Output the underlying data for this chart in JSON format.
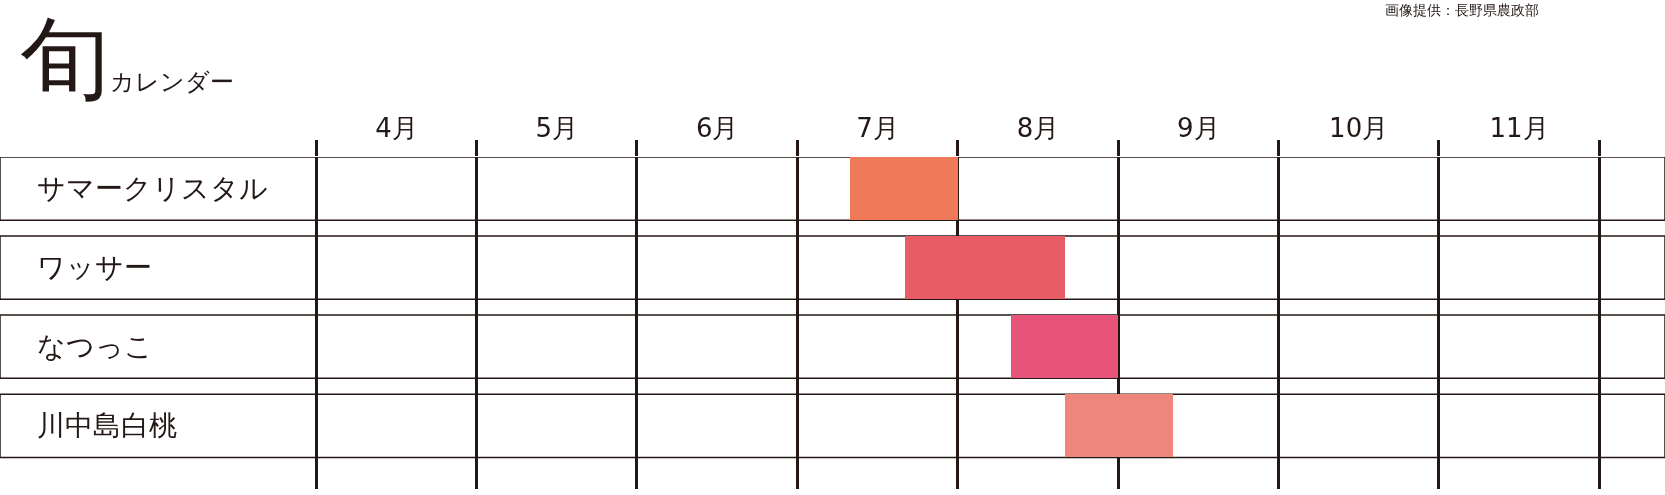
{
  "chart_data": {
    "type": "bar",
    "orientation": "horizontal",
    "title": "旬カレンダー",
    "annotations": [
      "画像提供：長野県農政部"
    ],
    "categories": [
      "サマークリスタル",
      "ワッサー",
      "なつっこ",
      "川中島白桃"
    ],
    "base": [
      7.33,
      7.67,
      8.33,
      8.67
    ],
    "values": [
      0.67,
      1.0,
      0.67,
      0.67
    ],
    "colors": [
      "#ef7a5a",
      "#e85d65",
      "#e8537a",
      "#ef867b"
    ],
    "xlim": [
      3.98,
      12.41
    ],
    "xticks": [
      {
        "value": 4,
        "label": null
      },
      {
        "value": 4.5,
        "label": "4月"
      },
      {
        "value": 5,
        "label": null
      },
      {
        "value": 5.5,
        "label": "5月"
      },
      {
        "value": 6,
        "label": null
      },
      {
        "value": 6.5,
        "label": "6月"
      },
      {
        "value": 7,
        "label": null
      },
      {
        "value": 7.5,
        "label": "7月"
      },
      {
        "value": 8,
        "label": null
      },
      {
        "value": 8.5,
        "label": "8月"
      },
      {
        "value": 9,
        "label": null
      },
      {
        "value": 9.5,
        "label": "9月"
      },
      {
        "value": 10,
        "label": null
      },
      {
        "value": 10.5,
        "label": "10月"
      },
      {
        "value": 11,
        "label": null
      },
      {
        "value": 11.5,
        "label": "11月"
      },
      {
        "value": 12,
        "label": null
      }
    ],
    "tick_labels": "x",
    "grid": "x",
    "legend": false
  }
}
